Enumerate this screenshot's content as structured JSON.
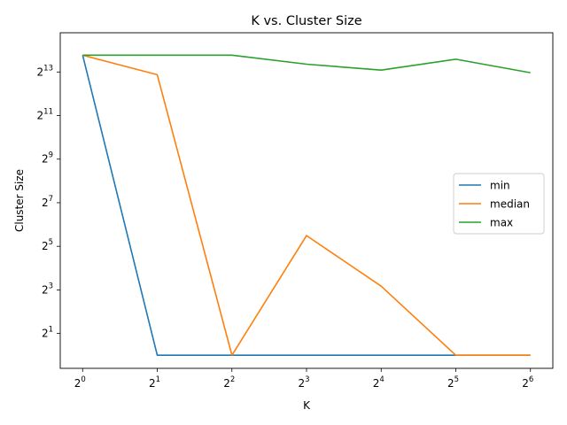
{
  "chart_data": {
    "type": "line",
    "title": "K vs. Cluster Size",
    "xlabel": "K",
    "ylabel": "Cluster Size",
    "x_scale": "log2",
    "y_scale": "log2",
    "x": [
      1,
      2,
      4,
      8,
      16,
      32,
      64
    ],
    "x_ticks": [
      {
        "base": "2",
        "exp": "0"
      },
      {
        "base": "2",
        "exp": "1"
      },
      {
        "base": "2",
        "exp": "2"
      },
      {
        "base": "2",
        "exp": "3"
      },
      {
        "base": "2",
        "exp": "4"
      },
      {
        "base": "2",
        "exp": "5"
      },
      {
        "base": "2",
        "exp": "6"
      }
    ],
    "y_ticks": [
      {
        "base": "2",
        "exp": "1"
      },
      {
        "base": "2",
        "exp": "3"
      },
      {
        "base": "2",
        "exp": "5"
      },
      {
        "base": "2",
        "exp": "7"
      },
      {
        "base": "2",
        "exp": "9"
      },
      {
        "base": "2",
        "exp": "11"
      },
      {
        "base": "2",
        "exp": "13"
      }
    ],
    "xlim_exp": [
      -0.3,
      6.3
    ],
    "ylim_exp": [
      -0.6,
      14.8
    ],
    "series": [
      {
        "name": "min",
        "color": "#1f77b4",
        "values": [
          14000,
          1,
          1,
          1,
          1,
          1,
          1
        ]
      },
      {
        "name": "median",
        "color": "#ff7f0e",
        "values": [
          14000,
          7500,
          1,
          45,
          9,
          1,
          1
        ]
      },
      {
        "name": "max",
        "color": "#2ca02c",
        "values": [
          14000,
          14000,
          14000,
          10500,
          8700,
          12300,
          8000
        ]
      }
    ],
    "legend": "center-right",
    "grid": false
  }
}
